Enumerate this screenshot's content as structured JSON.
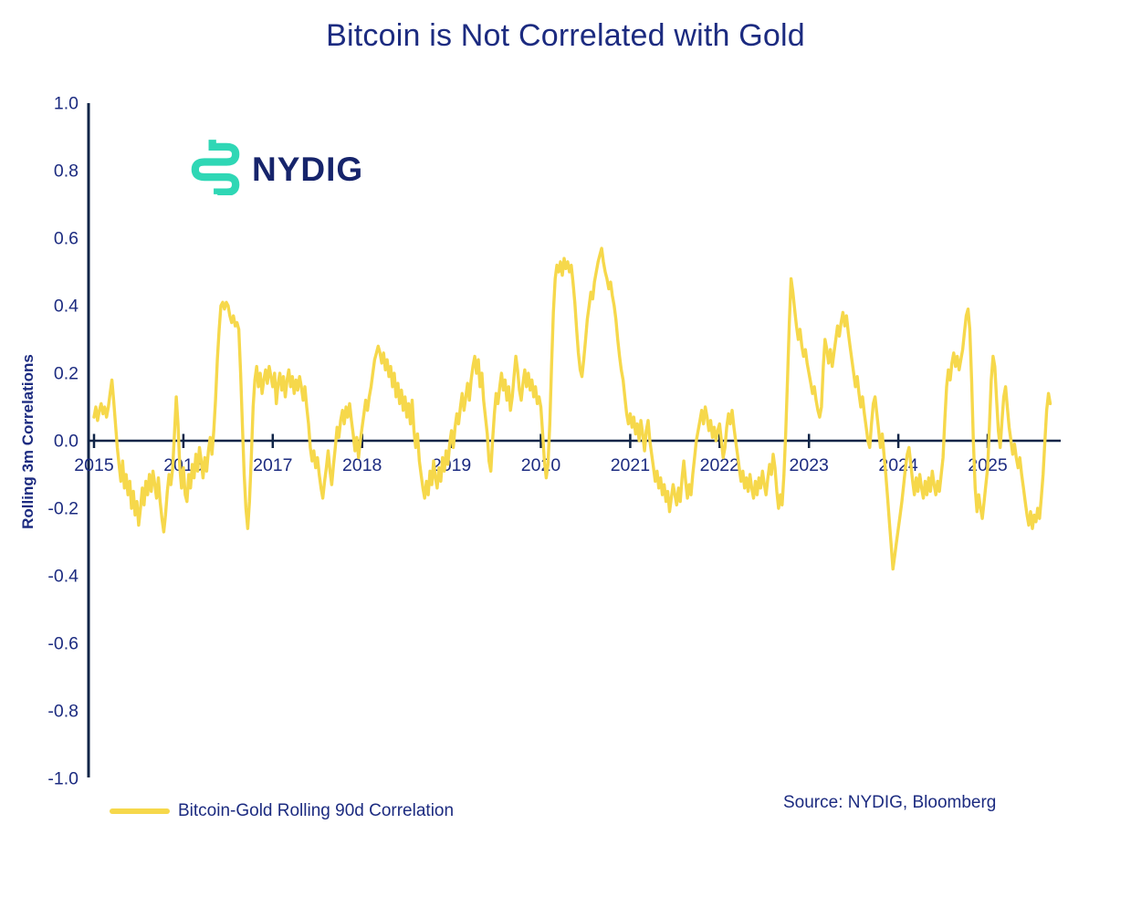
{
  "title": "Bitcoin is Not Correlated with Gold",
  "logo": {
    "text": "NYDIG"
  },
  "y_axis": {
    "label": "Rolling 3m Correlations",
    "ticks": [
      "1.0",
      "0.8",
      "0.6",
      "0.4",
      "0.2",
      "0.0",
      "-0.2",
      "-0.4",
      "-0.6",
      "-0.8",
      "-1.0"
    ]
  },
  "x_axis": {
    "ticks": [
      "2015",
      "2016",
      "2017",
      "2018",
      "2019",
      "2020",
      "2021",
      "2022",
      "2023",
      "2024",
      "2025"
    ]
  },
  "legend": {
    "label": "Bitcoin-Gold Rolling 90d Correlation"
  },
  "source": "Source: NYDIG, Bloomberg",
  "colors": {
    "line": "#F6D84B",
    "axis": "#0f2447",
    "text_navy": "#1c2b80",
    "logo_teal": "#2FD7B5",
    "logo_navy": "#16246b"
  },
  "chart_data": {
    "type": "line",
    "title": "Bitcoin is Not Correlated with Gold",
    "xlabel": "",
    "ylabel": "Rolling 3m Correlations",
    "ylim": [
      -1.0,
      1.0
    ],
    "xlim": [
      2015,
      2025.7
    ],
    "x_ticks": [
      2015,
      2016,
      2017,
      2018,
      2019,
      2020,
      2021,
      2022,
      2023,
      2024,
      2025
    ],
    "y_ticks": [
      1.0,
      0.8,
      0.6,
      0.4,
      0.2,
      0.0,
      -0.2,
      -0.4,
      -0.6,
      -0.8,
      -1.0
    ],
    "grid": false,
    "legend_position": "bottom-left",
    "series": [
      {
        "name": "Bitcoin-Gold Rolling 90d Correlation",
        "t0": 2015.0,
        "dt": 0.02,
        "values": [
          0.07,
          0.1,
          0.06,
          0.09,
          0.11,
          0.08,
          0.1,
          0.07,
          0.1,
          0.14,
          0.18,
          0.12,
          0.05,
          -0.02,
          -0.07,
          -0.12,
          -0.06,
          -0.14,
          -0.1,
          -0.16,
          -0.12,
          -0.2,
          -0.15,
          -0.22,
          -0.18,
          -0.25,
          -0.2,
          -0.14,
          -0.19,
          -0.12,
          -0.16,
          -0.1,
          -0.15,
          -0.09,
          -0.13,
          -0.17,
          -0.11,
          -0.18,
          -0.23,
          -0.27,
          -0.22,
          -0.15,
          -0.1,
          -0.13,
          -0.08,
          0.02,
          0.13,
          0.05,
          -0.08,
          -0.14,
          -0.08,
          -0.16,
          -0.18,
          -0.1,
          -0.14,
          -0.07,
          -0.11,
          -0.04,
          -0.09,
          -0.02,
          -0.06,
          -0.11,
          -0.05,
          -0.09,
          -0.03,
          0.01,
          -0.04,
          0.03,
          0.12,
          0.24,
          0.33,
          0.4,
          0.41,
          0.39,
          0.41,
          0.4,
          0.37,
          0.35,
          0.37,
          0.34,
          0.35,
          0.33,
          0.2,
          0.05,
          -0.1,
          -0.2,
          -0.26,
          -0.18,
          -0.05,
          0.1,
          0.18,
          0.22,
          0.16,
          0.2,
          0.14,
          0.18,
          0.21,
          0.17,
          0.22,
          0.19,
          0.16,
          0.2,
          0.11,
          0.17,
          0.2,
          0.15,
          0.19,
          0.13,
          0.18,
          0.21,
          0.16,
          0.19,
          0.14,
          0.18,
          0.15,
          0.19,
          0.16,
          0.12,
          0.16,
          0.1,
          0.05,
          -0.02,
          -0.06,
          -0.03,
          -0.08,
          -0.05,
          -0.1,
          -0.14,
          -0.17,
          -0.12,
          -0.08,
          -0.03,
          -0.09,
          -0.13,
          -0.07,
          -0.02,
          0.04,
          0.01,
          0.06,
          0.09,
          0.05,
          0.1,
          0.07,
          0.11,
          0.06,
          0.02,
          -0.03,
          0.01,
          -0.05,
          0.0,
          0.04,
          0.08,
          0.12,
          0.09,
          0.13,
          0.16,
          0.2,
          0.24,
          0.26,
          0.28,
          0.26,
          0.23,
          0.26,
          0.21,
          0.24,
          0.19,
          0.22,
          0.16,
          0.2,
          0.13,
          0.17,
          0.11,
          0.15,
          0.09,
          0.13,
          0.07,
          0.11,
          0.05,
          0.12,
          0.03,
          -0.02,
          0.02,
          -0.06,
          -0.1,
          -0.14,
          -0.17,
          -0.12,
          -0.16,
          -0.09,
          -0.13,
          -0.06,
          -0.11,
          -0.14,
          -0.08,
          -0.12,
          -0.05,
          -0.09,
          -0.03,
          -0.07,
          -0.01,
          0.03,
          -0.02,
          0.04,
          0.08,
          0.05,
          0.1,
          0.14,
          0.09,
          0.13,
          0.17,
          0.12,
          0.18,
          0.22,
          0.25,
          0.2,
          0.24,
          0.16,
          0.2,
          0.12,
          0.07,
          0.02,
          -0.06,
          -0.09,
          0.0,
          0.08,
          0.14,
          0.11,
          0.16,
          0.2,
          0.15,
          0.18,
          0.12,
          0.16,
          0.09,
          0.13,
          0.19,
          0.25,
          0.21,
          0.15,
          0.12,
          0.17,
          0.21,
          0.16,
          0.2,
          0.15,
          0.18,
          0.13,
          0.16,
          0.11,
          0.13,
          0.1,
          0.02,
          -0.06,
          -0.11,
          -0.07,
          0.05,
          0.22,
          0.38,
          0.48,
          0.52,
          0.5,
          0.53,
          0.49,
          0.54,
          0.51,
          0.53,
          0.5,
          0.52,
          0.47,
          0.41,
          0.33,
          0.26,
          0.21,
          0.19,
          0.24,
          0.3,
          0.36,
          0.4,
          0.44,
          0.42,
          0.47,
          0.5,
          0.53,
          0.55,
          0.57,
          0.53,
          0.5,
          0.48,
          0.45,
          0.47,
          0.43,
          0.4,
          0.36,
          0.3,
          0.25,
          0.21,
          0.18,
          0.13,
          0.08,
          0.05,
          0.08,
          0.04,
          0.07,
          0.02,
          0.05,
          0.0,
          0.06,
          0.02,
          -0.03,
          0.03,
          0.06,
          0.0,
          -0.04,
          -0.08,
          -0.12,
          -0.09,
          -0.14,
          -0.11,
          -0.16,
          -0.13,
          -0.18,
          -0.15,
          -0.21,
          -0.17,
          -0.13,
          -0.16,
          -0.19,
          -0.14,
          -0.18,
          -0.11,
          -0.06,
          -0.12,
          -0.17,
          -0.13,
          -0.16,
          -0.1,
          -0.05,
          0.0,
          0.03,
          0.06,
          0.09,
          0.05,
          0.1,
          0.07,
          0.03,
          0.06,
          0.01,
          0.04,
          0.0,
          0.03,
          0.05,
          0.0,
          -0.05,
          -0.02,
          0.04,
          0.08,
          0.05,
          0.09,
          0.04,
          0.0,
          -0.04,
          -0.08,
          -0.12,
          -0.09,
          -0.14,
          -0.11,
          -0.15,
          -0.1,
          -0.14,
          -0.17,
          -0.12,
          -0.16,
          -0.11,
          -0.14,
          -0.09,
          -0.13,
          -0.16,
          -0.11,
          -0.07,
          -0.1,
          -0.04,
          -0.08,
          -0.15,
          -0.2,
          -0.16,
          -0.19,
          -0.1,
          0.02,
          0.18,
          0.35,
          0.48,
          0.44,
          0.39,
          0.34,
          0.3,
          0.33,
          0.28,
          0.25,
          0.27,
          0.23,
          0.2,
          0.17,
          0.14,
          0.16,
          0.12,
          0.09,
          0.07,
          0.1,
          0.22,
          0.3,
          0.27,
          0.23,
          0.27,
          0.22,
          0.26,
          0.3,
          0.34,
          0.31,
          0.35,
          0.38,
          0.34,
          0.37,
          0.32,
          0.28,
          0.24,
          0.2,
          0.16,
          0.19,
          0.14,
          0.1,
          0.13,
          0.08,
          0.04,
          0.0,
          -0.02,
          0.05,
          0.11,
          0.13,
          0.08,
          0.03,
          -0.02,
          0.02,
          -0.04,
          -0.1,
          -0.17,
          -0.24,
          -0.31,
          -0.38,
          -0.34,
          -0.3,
          -0.26,
          -0.22,
          -0.18,
          -0.13,
          -0.08,
          -0.04,
          -0.02,
          -0.07,
          -0.12,
          -0.16,
          -0.11,
          -0.15,
          -0.1,
          -0.14,
          -0.17,
          -0.12,
          -0.16,
          -0.11,
          -0.15,
          -0.09,
          -0.13,
          -0.16,
          -0.12,
          -0.15,
          -0.1,
          -0.05,
          0.06,
          0.16,
          0.21,
          0.18,
          0.23,
          0.26,
          0.22,
          0.25,
          0.21,
          0.24,
          0.27,
          0.32,
          0.37,
          0.39,
          0.33,
          0.18,
          0.0,
          -0.14,
          -0.21,
          -0.16,
          -0.2,
          -0.23,
          -0.18,
          -0.13,
          -0.08,
          0.05,
          0.18,
          0.25,
          0.22,
          0.12,
          0.03,
          -0.02,
          0.06,
          0.13,
          0.16,
          0.1,
          0.04,
          0.0,
          -0.04,
          -0.01,
          -0.05,
          -0.08,
          -0.05,
          -0.1,
          -0.14,
          -0.18,
          -0.22,
          -0.25,
          -0.21,
          -0.26,
          -0.22,
          -0.24,
          -0.2,
          -0.23,
          -0.17,
          -0.1,
          0.0,
          0.09,
          0.14,
          0.11
        ]
      }
    ]
  }
}
